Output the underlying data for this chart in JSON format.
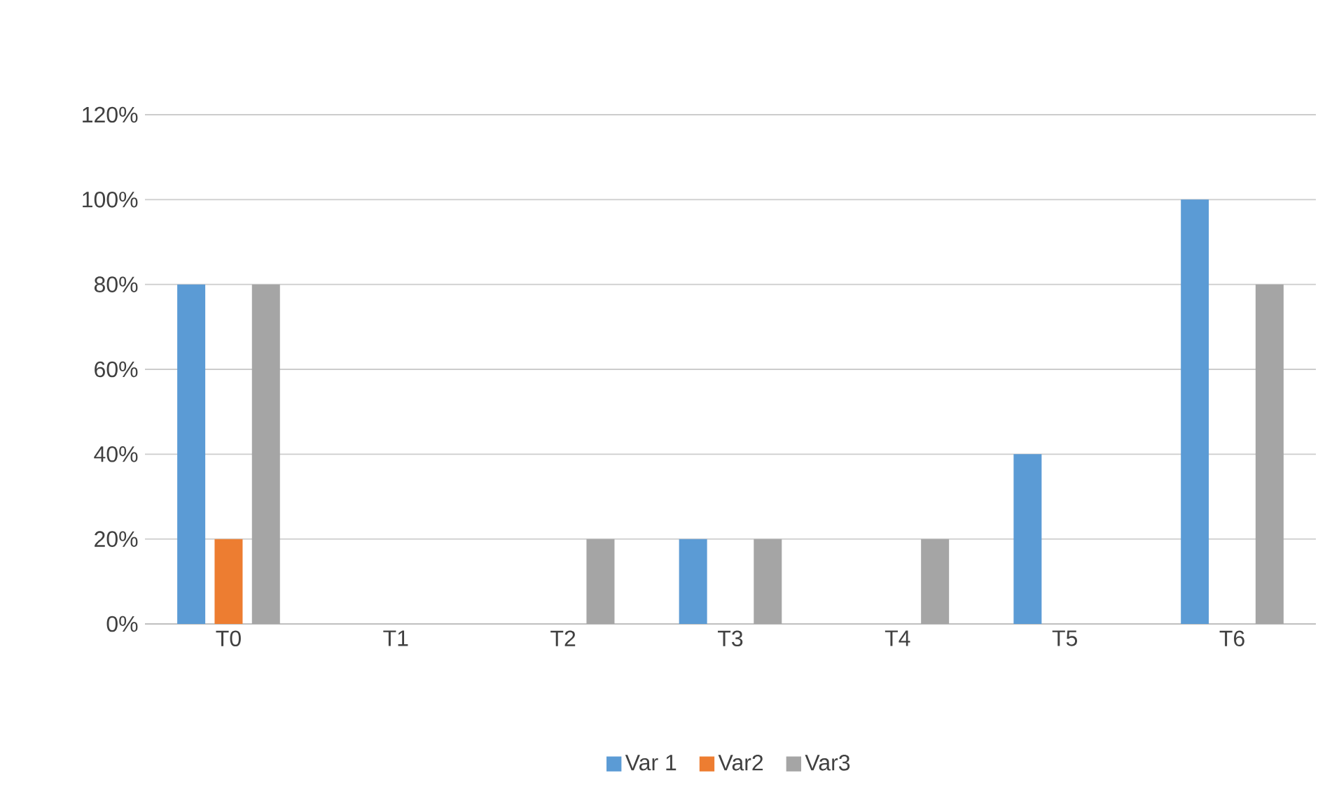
{
  "chart_data": {
    "type": "bar",
    "categories": [
      "T0",
      "T1",
      "T2",
      "T3",
      "T4",
      "T5",
      "T6"
    ],
    "series": [
      {
        "name": "Var 1",
        "color": "#5b9bd5",
        "values": [
          80,
          0,
          0,
          20,
          0,
          40,
          100
        ]
      },
      {
        "name": "Var2",
        "color": "#ed7d31",
        "values": [
          20,
          0,
          0,
          0,
          0,
          0,
          0
        ]
      },
      {
        "name": "Var3",
        "color": "#a5a5a5",
        "values": [
          80,
          0,
          20,
          20,
          20,
          0,
          80
        ]
      }
    ],
    "ylim": [
      0,
      120
    ],
    "yticks": [
      {
        "value": 0,
        "label": "0%"
      },
      {
        "value": 20,
        "label": "20%"
      },
      {
        "value": 40,
        "label": "40%"
      },
      {
        "value": 60,
        "label": "60%"
      },
      {
        "value": 80,
        "label": "80%"
      },
      {
        "value": 100,
        "label": "100%"
      },
      {
        "value": 120,
        "label": "120%"
      }
    ],
    "grid": "y",
    "legend": "bottom"
  }
}
